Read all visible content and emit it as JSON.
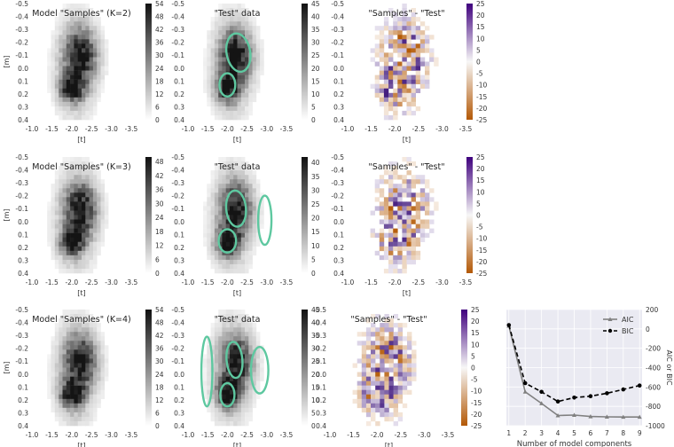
{
  "panels": [
    {
      "id": "r1c1",
      "kind": "hist",
      "cmap": "gray",
      "title": "Model \"Samples\" (K=2)",
      "cbar_ticks": [
        54,
        48,
        42,
        36,
        30,
        24,
        18,
        12,
        6,
        0
      ],
      "cbar_max": 54,
      "seed": 11,
      "ellipses": []
    },
    {
      "id": "r1c2",
      "kind": "hist",
      "cmap": "gray",
      "title": "\"Test\" data",
      "cbar_ticks": [
        45,
        40,
        35,
        30,
        25,
        20,
        15,
        10,
        5,
        0
      ],
      "cbar_max": 45,
      "seed": 23,
      "ellipses": [
        {
          "cx": -2.28,
          "cy": -0.12,
          "rx": 0.3,
          "ry": 0.15,
          "rot": -10
        },
        {
          "cx": -2.0,
          "cy": 0.13,
          "rx": 0.2,
          "ry": 0.09,
          "rot": 0
        }
      ]
    },
    {
      "id": "r1c3",
      "kind": "diff",
      "title": "\"Samples\" - \"Test\"",
      "cbar_ticks": [
        25,
        20,
        15,
        10,
        5,
        0,
        -5,
        -10,
        -15,
        -20,
        -25
      ],
      "cbar_max": 25,
      "seed": 37,
      "ellipses": []
    },
    {
      "id": "r2c1",
      "kind": "hist",
      "cmap": "gray",
      "title": "Model \"Samples\" (K=3)",
      "cbar_ticks": [
        48,
        42,
        36,
        30,
        24,
        18,
        12,
        6,
        0
      ],
      "cbar_max": 50,
      "seed": 41,
      "ellipses": []
    },
    {
      "id": "r2c2",
      "kind": "hist",
      "cmap": "gray",
      "title": "\"Test\" data",
      "cbar_ticks": [
        40,
        35,
        30,
        25,
        20,
        15,
        10,
        5,
        0
      ],
      "cbar_max": 42,
      "seed": 53,
      "ellipses": [
        {
          "cx": -2.22,
          "cy": -0.1,
          "rx": 0.25,
          "ry": 0.14,
          "rot": -5
        },
        {
          "cx": -2.0,
          "cy": 0.15,
          "rx": 0.22,
          "ry": 0.09,
          "rot": 0
        },
        {
          "cx": -2.95,
          "cy": -0.01,
          "rx": 0.17,
          "ry": 0.19,
          "rot": 0
        }
      ]
    },
    {
      "id": "r2c3",
      "kind": "diff",
      "title": "\"Samples\" - \"Test\"",
      "cbar_ticks": [
        25,
        20,
        15,
        10,
        5,
        0,
        -5,
        -10,
        -15,
        -20,
        -25
      ],
      "cbar_max": 25,
      "seed": 67,
      "ellipses": []
    },
    {
      "id": "r3c1",
      "kind": "hist",
      "cmap": "gray",
      "title": "Model \"Samples\" (K=4)",
      "cbar_ticks": [
        54,
        48,
        42,
        36,
        30,
        24,
        18,
        12,
        6,
        0
      ],
      "cbar_max": 54,
      "seed": 71,
      "ellipses": []
    },
    {
      "id": "r3c2",
      "kind": "hist",
      "cmap": "gray",
      "title": "\"Test\" data",
      "cbar_ticks": [
        45,
        40,
        35,
        30,
        25,
        20,
        15,
        10,
        5,
        0
      ],
      "cbar_max": 45,
      "seed": 83,
      "ellipses": [
        {
          "cx": -2.18,
          "cy": -0.11,
          "rx": 0.2,
          "ry": 0.14,
          "rot": -5
        },
        {
          "cx": -2.0,
          "cy": 0.16,
          "rx": 0.18,
          "ry": 0.09,
          "rot": 0
        },
        {
          "cx": -2.82,
          "cy": -0.03,
          "rx": 0.22,
          "ry": 0.18,
          "rot": 0
        },
        {
          "cx": -1.48,
          "cy": -0.02,
          "rx": 0.14,
          "ry": 0.27,
          "rot": 0
        }
      ]
    },
    {
      "id": "r3c3",
      "kind": "diff",
      "title": "\"Samples\" - \"Test\"",
      "cbar_ticks": [
        25,
        20,
        15,
        10,
        5,
        0,
        -5,
        -10,
        -15,
        -20,
        -25
      ],
      "cbar_max": 25,
      "seed": 97,
      "ellipses": []
    }
  ],
  "axes": {
    "x_ticks": [
      "-1.0",
      "-1.5",
      "-2.0",
      "-2.5",
      "-3.0",
      "-3.5"
    ],
    "y_ticks": [
      "-0.5",
      "-0.4",
      "-0.3",
      "-0.2",
      "-0.1",
      "0.0",
      "0.1",
      "0.2",
      "0.3",
      "0.4"
    ],
    "xlabel": "[t]",
    "ylabel": "[m]"
  },
  "colors": {
    "ellipse": "#5ec8a0",
    "diff_pos": "#3f007d",
    "diff_neg": "#b35806",
    "aic": "#808080",
    "bic": "#000000",
    "grid": "#ffffff",
    "bg_line": "#eaeaf2"
  },
  "chart_data": {
    "type": "line",
    "x": [
      1,
      2,
      3,
      4,
      5,
      6,
      7,
      8,
      9
    ],
    "series": [
      {
        "name": "AIC",
        "values": [
          30,
          -650,
          -770,
          -895,
          -890,
          -905,
          -908,
          -910,
          -910
        ],
        "style": "solid",
        "marker": "triangle"
      },
      {
        "name": "BIC",
        "values": [
          40,
          -560,
          -650,
          -750,
          -710,
          -695,
          -665,
          -625,
          -585
        ],
        "style": "dashed",
        "marker": "circle"
      }
    ],
    "xlabel": "Number of model components",
    "ylabel": "AIC or BIC",
    "x_ticks": [
      1,
      2,
      3,
      4,
      5,
      6,
      7,
      8,
      9
    ],
    "y_ticks": [
      200,
      0,
      -200,
      -400,
      -600,
      -800,
      -1000
    ],
    "xlim": [
      0.85,
      9.15
    ],
    "ylim": [
      -1000,
      200
    ],
    "legend_placement": "top-right"
  }
}
